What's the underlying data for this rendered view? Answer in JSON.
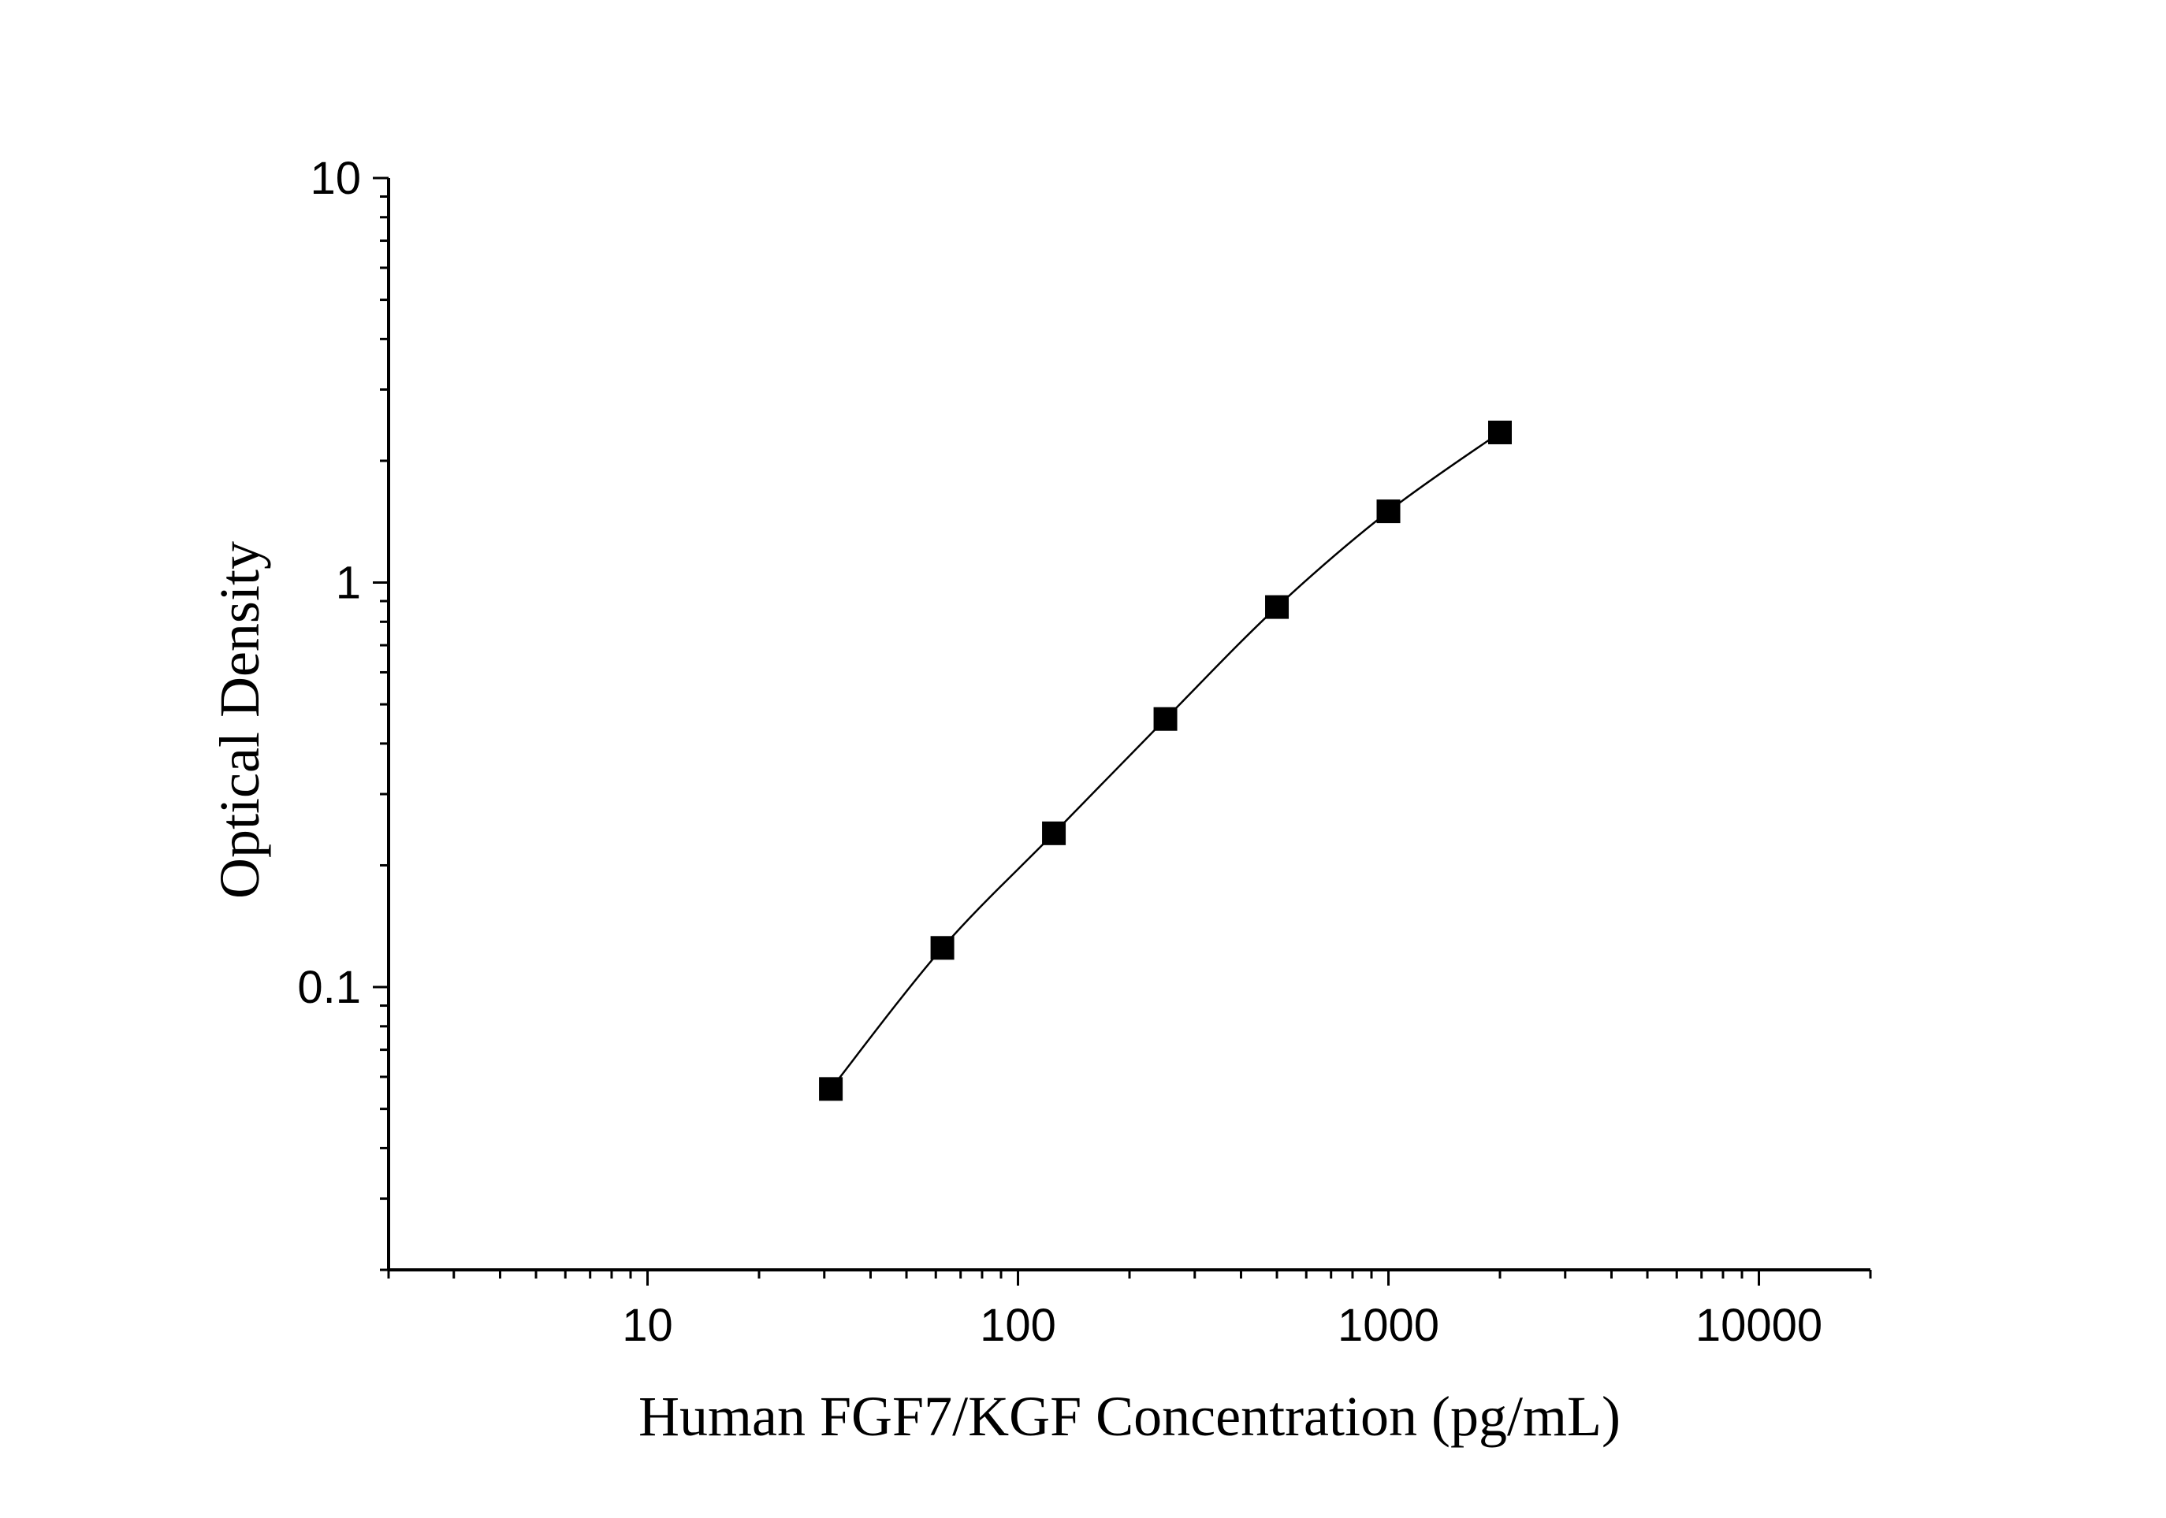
{
  "chart_data": {
    "type": "scatter",
    "xlabel": "Human FGF7/KGF Concentration (pg/mL)",
    "ylabel": "Optical Density",
    "xscale": "log",
    "yscale": "log",
    "xlim": [
      2,
      20000
    ],
    "ylim": [
      0.02,
      10
    ],
    "xticks": [
      {
        "value": 10,
        "label": "10"
      },
      {
        "value": 100,
        "label": "100"
      },
      {
        "value": 1000,
        "label": "1000"
      },
      {
        "value": 10000,
        "label": "10000"
      }
    ],
    "yticks": [
      {
        "value": 0.1,
        "label": "0.1"
      },
      {
        "value": 1,
        "label": "1"
      },
      {
        "value": 10,
        "label": "10"
      }
    ],
    "grid": false,
    "legend": "none",
    "series": [
      {
        "marker": "square",
        "fit_line": true,
        "color": "#000000",
        "x": [
          31.25,
          62.5,
          125,
          250,
          500,
          1000,
          2000
        ],
        "y": [
          0.056,
          0.125,
          0.24,
          0.46,
          0.87,
          1.5,
          2.35
        ]
      }
    ]
  }
}
